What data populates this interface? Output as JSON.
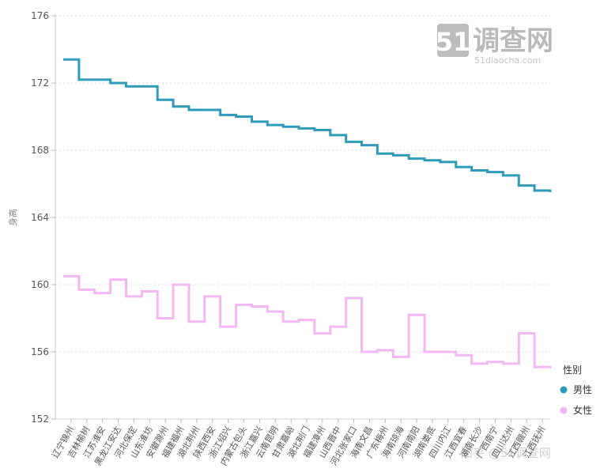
{
  "watermark": {
    "logo_num": "51",
    "logo_text": "调查网",
    "logo_url": "51diaocha.com",
    "bottom_text": "知乎 @51调查网"
  },
  "chart_data": {
    "type": "line",
    "step": true,
    "title": "",
    "xlabel": "",
    "ylabel": "身高",
    "ylim": [
      152,
      176
    ],
    "yticks": [
      152,
      156,
      160,
      164,
      168,
      172,
      176
    ],
    "grid": "horizontal dashed",
    "legend": {
      "title": "性别",
      "placement": "right"
    },
    "categories": [
      "辽宁锦州",
      "吉林榆树",
      "江苏淮安",
      "黑龙江安达",
      "河北保定",
      "山东淮坊",
      "安徽滁州",
      "福建福州",
      "湖北荆州",
      "陕西西安",
      "浙江绍兴",
      "内蒙古包头",
      "浙江嘉兴",
      "云南昆明",
      "甘肃嘉峪",
      "湖北荆门",
      "福建漳州",
      "山西晋中",
      "河北张家口",
      "海南文昌",
      "广东梅州",
      "海南琼海",
      "河南南阳",
      "湖南娄底",
      "四川内江",
      "江西宜春",
      "湖南长沙",
      "广西南宁",
      "四川达州",
      "江西赣州",
      "江西抚州"
    ],
    "series": [
      {
        "name": "男性",
        "color": "#2f9bb8",
        "values": [
          173.4,
          172.2,
          172.2,
          172.0,
          171.8,
          171.8,
          171.0,
          170.6,
          170.4,
          170.4,
          170.1,
          170.0,
          169.7,
          169.5,
          169.4,
          169.3,
          169.2,
          168.9,
          168.5,
          168.3,
          167.8,
          167.7,
          167.5,
          167.4,
          167.3,
          167.0,
          166.8,
          166.7,
          166.5,
          165.9,
          165.6
        ]
      },
      {
        "name": "女性",
        "color": "#f2b8f2",
        "values": [
          160.5,
          159.7,
          159.5,
          160.3,
          159.3,
          159.6,
          158.0,
          160.0,
          157.8,
          159.3,
          157.5,
          158.8,
          158.7,
          158.4,
          157.8,
          157.9,
          157.1,
          157.5,
          159.2,
          156.0,
          156.1,
          155.7,
          158.2,
          156.0,
          156.0,
          155.8,
          155.3,
          155.4,
          155.3,
          157.1,
          155.1
        ]
      }
    ]
  }
}
